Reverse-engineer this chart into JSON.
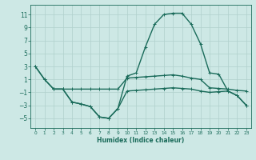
{
  "xlabel": "Humidex (Indice chaleur)",
  "xlim": [
    -0.5,
    23.5
  ],
  "ylim": [
    -6.5,
    12.5
  ],
  "yticks": [
    -5,
    -3,
    -1,
    1,
    3,
    5,
    7,
    9,
    11
  ],
  "xticks": [
    0,
    1,
    2,
    3,
    4,
    5,
    6,
    7,
    8,
    9,
    10,
    11,
    12,
    13,
    14,
    15,
    16,
    17,
    18,
    19,
    20,
    21,
    22,
    23
  ],
  "bg_color": "#cde8e5",
  "grid_color": "#b0d0cc",
  "line_color": "#1a6b5a",
  "line_width": 1.0,
  "marker": "+",
  "marker_size": 3.5,
  "series": [
    {
      "x": [
        0,
        1,
        2,
        3,
        4,
        5,
        6,
        7,
        8,
        9,
        10,
        11,
        12,
        13,
        14,
        15,
        16,
        17,
        18,
        19,
        20,
        21,
        22,
        23
      ],
      "y": [
        3,
        1,
        -0.5,
        -0.5,
        -2.5,
        -2.8,
        -3.2,
        -4.8,
        -5.0,
        -3.5,
        1.5,
        2.0,
        6.0,
        9.5,
        11.0,
        11.2,
        11.2,
        9.5,
        6.5,
        2.0,
        1.8,
        -0.8,
        -1.5,
        -3.0
      ]
    },
    {
      "x": [
        0,
        1,
        2,
        3,
        4,
        5,
        6,
        7,
        8,
        9,
        10,
        11,
        12,
        13,
        14,
        15,
        16,
        17,
        18,
        19,
        20,
        21,
        22,
        23
      ],
      "y": [
        3,
        1,
        -0.5,
        -0.5,
        -0.5,
        -0.5,
        -0.5,
        -0.5,
        -0.5,
        -0.5,
        1.2,
        1.3,
        1.4,
        1.5,
        1.6,
        1.7,
        1.5,
        1.2,
        1.0,
        -0.3,
        -0.4,
        -0.5,
        -0.7,
        -0.8
      ]
    },
    {
      "x": [
        2,
        3,
        4,
        5,
        6,
        7,
        8,
        9,
        10,
        11,
        12,
        13,
        14,
        15,
        16,
        17,
        18,
        19,
        20,
        21,
        22,
        23
      ],
      "y": [
        -0.5,
        -0.5,
        -2.5,
        -2.8,
        -3.2,
        -4.8,
        -5.0,
        -3.5,
        -0.8,
        -0.7,
        -0.6,
        -0.5,
        -0.4,
        -0.3,
        -0.4,
        -0.5,
        -0.8,
        -1.0,
        -0.9,
        -0.8,
        -1.5,
        -3.0
      ]
    }
  ]
}
